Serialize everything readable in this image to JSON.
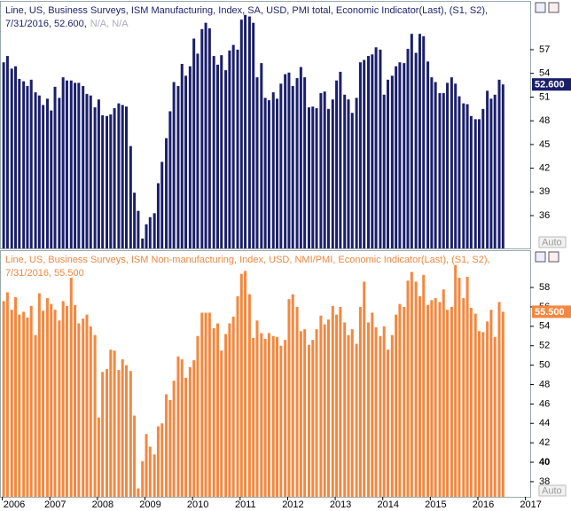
{
  "chart_data": [
    {
      "type": "bar",
      "title": "Line, US, Business Surveys, ISM Manufacturing, Index, SA, USD, PMI total, Economic Indicator(Last), (S1, S2),",
      "subtitle": "7/31/2016, 52.600,",
      "subtitle_note": "N/A, N/A",
      "color": "#1b1f6b",
      "title_color": "#1b1f6b",
      "last_label": "52.600",
      "scale_mode": "Auto",
      "xlim": [
        2005.97,
        2017.1
      ],
      "ylim": [
        31.85,
        63.06
      ],
      "yticks": [
        36,
        39,
        42,
        45,
        48,
        51,
        54,
        57
      ],
      "x": [
        2006,
        2006.08,
        2006.17,
        2006.25,
        2006.33,
        2006.42,
        2006.5,
        2006.58,
        2006.67,
        2006.75,
        2006.83,
        2006.92,
        2007,
        2007.08,
        2007.17,
        2007.25,
        2007.33,
        2007.42,
        2007.5,
        2007.58,
        2007.67,
        2007.75,
        2007.83,
        2007.92,
        2008,
        2008.08,
        2008.17,
        2008.25,
        2008.33,
        2008.42,
        2008.5,
        2008.58,
        2008.67,
        2008.75,
        2008.83,
        2008.92,
        2009,
        2009.08,
        2009.17,
        2009.25,
        2009.33,
        2009.42,
        2009.5,
        2009.58,
        2009.67,
        2009.75,
        2009.83,
        2009.92,
        2010,
        2010.08,
        2010.17,
        2010.25,
        2010.33,
        2010.42,
        2010.5,
        2010.58,
        2010.67,
        2010.75,
        2010.83,
        2010.92,
        2011,
        2011.08,
        2011.17,
        2011.25,
        2011.33,
        2011.42,
        2011.5,
        2011.58,
        2011.67,
        2011.75,
        2011.83,
        2011.92,
        2012,
        2012.08,
        2012.17,
        2012.25,
        2012.33,
        2012.42,
        2012.5,
        2012.58,
        2012.67,
        2012.75,
        2012.83,
        2012.92,
        2013,
        2013.08,
        2013.17,
        2013.25,
        2013.33,
        2013.42,
        2013.5,
        2013.58,
        2013.67,
        2013.75,
        2013.83,
        2013.92,
        2014,
        2014.08,
        2014.17,
        2014.25,
        2014.33,
        2014.42,
        2014.5,
        2014.58,
        2014.67,
        2014.75,
        2014.83,
        2014.92,
        2015,
        2015.08,
        2015.17,
        2015.25,
        2015.33,
        2015.42,
        2015.5,
        2015.58,
        2015.67,
        2015.75,
        2015.83,
        2015.92,
        2016,
        2016.08,
        2016.17,
        2016.25,
        2016.33,
        2016.42,
        2016.5
      ],
      "values": [
        55.4,
        56.2,
        54.6,
        54.9,
        53.3,
        53.0,
        52.4,
        53.2,
        51.6,
        51.2,
        50.0,
        50.8,
        49.3,
        52.3,
        50.9,
        53.5,
        53.1,
        53.1,
        52.8,
        52.8,
        52.4,
        51.4,
        51.2,
        49.7,
        50.7,
        48.7,
        48.6,
        48.8,
        49.6,
        50.2,
        50.0,
        49.8,
        44.8,
        38.9,
        36.6,
        33.1,
        34.9,
        35.8,
        36.3,
        40.1,
        42.8,
        45.8,
        49.2,
        52.9,
        52.4,
        55.2,
        53.7,
        54.9,
        58.4,
        56.5,
        59.6,
        60.4,
        59.7,
        56.2,
        55.1,
        56.3,
        54.4,
        56.9,
        57.6,
        57.0,
        60.8,
        61.4,
        61.2,
        60.4,
        53.5,
        55.3,
        50.9,
        50.6,
        51.6,
        50.8,
        52.7,
        53.9,
        54.1,
        52.4,
        53.4,
        54.8,
        53.5,
        49.7,
        49.8,
        49.6,
        51.5,
        51.7,
        49.5,
        50.7,
        53.1,
        54.2,
        51.3,
        50.7,
        49.0,
        50.9,
        55.4,
        55.7,
        56.2,
        56.4,
        57.3,
        57.0,
        51.3,
        53.2,
        53.7,
        54.9,
        55.4,
        55.3,
        57.1,
        59.0,
        56.6,
        59.0,
        58.7,
        55.5,
        53.5,
        52.9,
        51.5,
        51.5,
        52.8,
        53.5,
        52.7,
        51.1,
        50.2,
        50.1,
        48.6,
        48.2,
        48.2,
        49.5,
        51.8,
        50.8,
        51.3,
        53.2,
        52.6
      ]
    },
    {
      "type": "bar",
      "title": "Line, US, Business Surveys, ISM Non-manufacturing, Index, USD, NMI/PMI, Economic Indicator(Last), (S1, S2),",
      "subtitle": "7/31/2016, 55.500",
      "color": "#f5873f",
      "title_color": "#f0873f",
      "last_label": "55.500",
      "scale_mode": "Auto",
      "highlight_tick": 40,
      "xlim": [
        2005.97,
        2017.1
      ],
      "xticks": [
        2006,
        2007,
        2008,
        2009,
        2010,
        2011,
        2012,
        2013,
        2014,
        2015,
        2016,
        2017
      ],
      "ylim": [
        36.44,
        61.75
      ],
      "yticks": [
        38,
        40,
        42,
        44,
        46,
        48,
        50,
        52,
        54,
        56,
        58
      ],
      "x": [
        2006,
        2006.08,
        2006.17,
        2006.25,
        2006.33,
        2006.42,
        2006.5,
        2006.58,
        2006.67,
        2006.75,
        2006.83,
        2006.92,
        2007,
        2007.08,
        2007.17,
        2007.25,
        2007.33,
        2007.42,
        2007.5,
        2007.58,
        2007.67,
        2007.75,
        2007.83,
        2007.92,
        2008,
        2008.08,
        2008.17,
        2008.25,
        2008.33,
        2008.42,
        2008.5,
        2008.58,
        2008.67,
        2008.75,
        2008.83,
        2008.92,
        2009,
        2009.08,
        2009.17,
        2009.25,
        2009.33,
        2009.42,
        2009.5,
        2009.58,
        2009.67,
        2009.75,
        2009.83,
        2009.92,
        2010,
        2010.08,
        2010.17,
        2010.25,
        2010.33,
        2010.42,
        2010.5,
        2010.58,
        2010.67,
        2010.75,
        2010.83,
        2010.92,
        2011,
        2011.08,
        2011.17,
        2011.25,
        2011.33,
        2011.42,
        2011.5,
        2011.58,
        2011.67,
        2011.75,
        2011.83,
        2011.92,
        2012,
        2012.08,
        2012.17,
        2012.25,
        2012.33,
        2012.42,
        2012.5,
        2012.58,
        2012.67,
        2012.75,
        2012.83,
        2012.92,
        2013,
        2013.08,
        2013.17,
        2013.25,
        2013.33,
        2013.42,
        2013.5,
        2013.58,
        2013.67,
        2013.75,
        2013.83,
        2013.92,
        2014,
        2014.08,
        2014.17,
        2014.25,
        2014.33,
        2014.42,
        2014.5,
        2014.58,
        2014.67,
        2014.75,
        2014.83,
        2014.92,
        2015,
        2015.08,
        2015.17,
        2015.25,
        2015.33,
        2015.42,
        2015.5,
        2015.58,
        2015.67,
        2015.75,
        2015.83,
        2015.92,
        2016,
        2016.08,
        2016.17,
        2016.25,
        2016.33,
        2016.42,
        2016.5
      ],
      "values": [
        56.6,
        57.5,
        55.7,
        57.0,
        55.2,
        55.5,
        54.9,
        56.1,
        53.1,
        57.4,
        55.6,
        56.9,
        56.3,
        55.7,
        54.6,
        56.6,
        56.1,
        59.0,
        56.2,
        54.3,
        54.8,
        55.2,
        54.0,
        53.1,
        44.6,
        49.3,
        49.6,
        51.6,
        51.5,
        49.5,
        50.6,
        50.0,
        49.4,
        44.8,
        37.3,
        40.1,
        42.9,
        41.6,
        40.8,
        43.7,
        44.0,
        47.0,
        46.4,
        48.4,
        50.9,
        50.6,
        48.7,
        49.8,
        50.5,
        53.0,
        55.4,
        55.4,
        55.4,
        53.8,
        54.3,
        51.5,
        53.2,
        54.3,
        55.0,
        57.1,
        59.4,
        59.7,
        57.3,
        52.8,
        54.6,
        53.3,
        52.7,
        53.3,
        53.0,
        52.9,
        52.0,
        52.6,
        56.8,
        57.3,
        56.0,
        53.5,
        53.7,
        52.1,
        52.6,
        53.7,
        55.1,
        54.2,
        54.7,
        56.1,
        55.2,
        56.0,
        54.4,
        53.1,
        53.7,
        52.2,
        56.0,
        58.6,
        54.4,
        55.4,
        53.9,
        53.0,
        54.0,
        51.6,
        53.1,
        55.2,
        56.3,
        56.0,
        58.7,
        59.6,
        58.6,
        57.1,
        59.3,
        56.2,
        56.7,
        56.9,
        56.5,
        57.8,
        55.7,
        56.0,
        60.3,
        59.0,
        56.9,
        59.1,
        55.9,
        55.3,
        53.5,
        53.4,
        54.5,
        55.7,
        52.9,
        56.5,
        55.5
      ]
    }
  ]
}
